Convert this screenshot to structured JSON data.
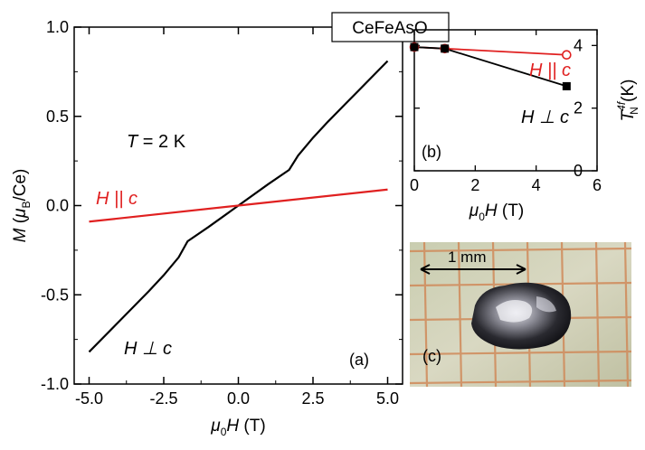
{
  "badge_title": "CeFeAsO",
  "chart_data": [
    {
      "panel": "(a)",
      "type": "line",
      "xlabel": {
        "sym": "μ",
        "sub": "0",
        "rest": "H (T)"
      },
      "ylabel": {
        "pre": "M (μ",
        "sub": "B",
        "post": "/Ce)"
      },
      "xlim": [
        -5.5,
        5.5
      ],
      "ylim": [
        -1.0,
        1.0
      ],
      "xticks": [
        -5.0,
        -2.5,
        0.0,
        2.5,
        5.0
      ],
      "xtick_labels": [
        "-5.0",
        "-2.5",
        "0.0",
        "2.5",
        "5.0"
      ],
      "yticks": [
        -1.0,
        -0.5,
        0.0,
        0.5,
        1.0
      ],
      "ytick_labels": [
        "-1.0",
        "-0.5",
        "0.0",
        "0.5",
        "1.0"
      ],
      "annotation": {
        "var": "T",
        "rest": " = 2 K"
      },
      "series": [
        {
          "name": "H ⊥ c",
          "color": "#000000",
          "x": [
            -5.0,
            -4.0,
            -3.0,
            -2.5,
            -2.0,
            -1.7,
            -1.0,
            0.0,
            1.0,
            1.7,
            2.0,
            2.5,
            3.0,
            4.0,
            5.0
          ],
          "y": [
            -0.82,
            -0.65,
            -0.48,
            -0.39,
            -0.29,
            -0.2,
            -0.12,
            0.0,
            0.12,
            0.2,
            0.28,
            0.38,
            0.47,
            0.64,
            0.81
          ]
        },
        {
          "name": "H || c",
          "color": "#e02020",
          "x": [
            -5.0,
            0.0,
            5.0
          ],
          "y": [
            -0.09,
            0.0,
            0.09
          ]
        }
      ]
    },
    {
      "panel": "(b)",
      "type": "line",
      "xlabel": {
        "sym": "μ",
        "sub": "0",
        "rest": "H (T)"
      },
      "ylabel": {
        "main": "T",
        "sup": "4f",
        "sub": "N",
        "post": " (K)"
      },
      "xlim": [
        0,
        6
      ],
      "ylim": [
        0,
        4.5
      ],
      "xticks": [
        0,
        2,
        4,
        6
      ],
      "xtick_labels": [
        "0",
        "2",
        "4",
        "6"
      ],
      "yticks": [
        0,
        2,
        4
      ],
      "ytick_labels": [
        "0",
        "2",
        "4"
      ],
      "series": [
        {
          "name": "H || c",
          "color": "#e02020",
          "marker": "open-circle",
          "x": [
            0,
            1,
            5
          ],
          "y": [
            3.95,
            3.9,
            3.7
          ]
        },
        {
          "name": "H ⊥ c",
          "color": "#000000",
          "marker": "filled-square",
          "x": [
            0,
            1,
            5
          ],
          "y": [
            3.95,
            3.9,
            2.7
          ]
        }
      ]
    }
  ],
  "photo": {
    "panel_label": "(c)",
    "scale_label": "1 mm"
  }
}
